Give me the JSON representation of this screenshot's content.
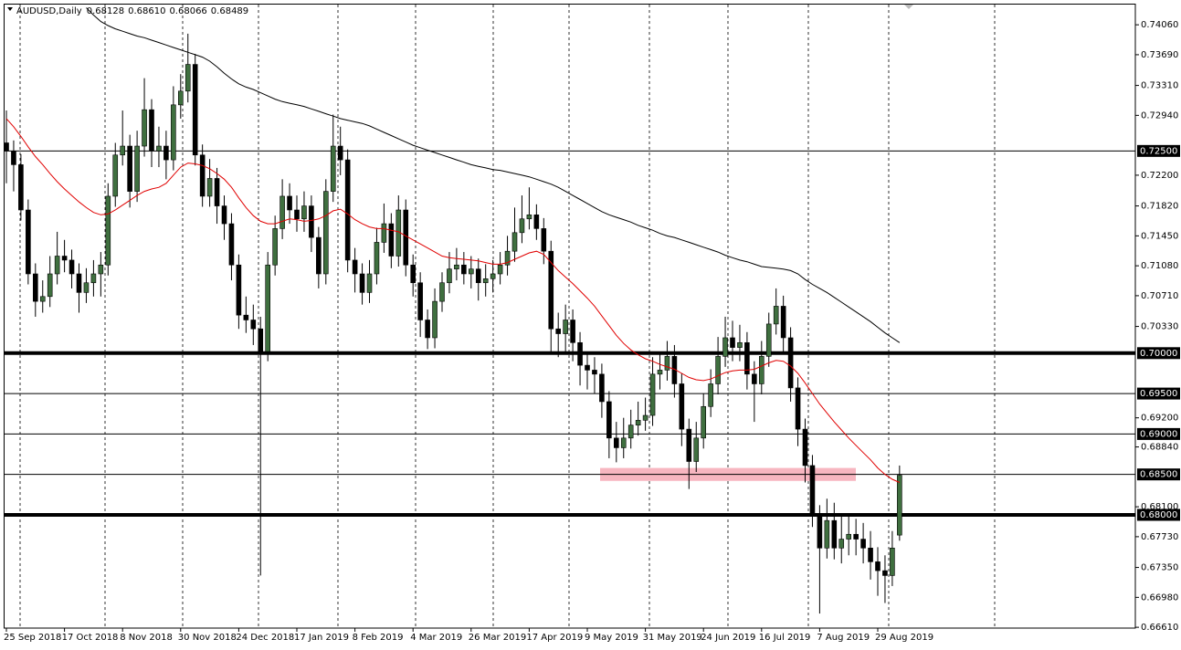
{
  "chart_data": {
    "type": "candlestick",
    "title": "AUDUSD,Daily",
    "header_values": [
      "0.68128",
      "0.68610",
      "0.68066",
      "0.68489"
    ],
    "categories": [
      "25 Sep 2018",
      null,
      null,
      null,
      null,
      null,
      null,
      null,
      "17 Oct 2018",
      null,
      null,
      null,
      null,
      null,
      null,
      null,
      "8 Nov 2018",
      null,
      null,
      null,
      null,
      null,
      null,
      null,
      "30 Nov 2018",
      null,
      null,
      null,
      null,
      null,
      null,
      null,
      "24 Dec 2018",
      null,
      null,
      null,
      null,
      null,
      null,
      null,
      "17 Jan 2019",
      null,
      null,
      null,
      null,
      null,
      null,
      null,
      "8 Feb 2019",
      null,
      null,
      null,
      null,
      null,
      null,
      null,
      "4 Mar 2019",
      null,
      null,
      null,
      null,
      null,
      null,
      null,
      "26 Mar 2019",
      null,
      null,
      null,
      null,
      null,
      null,
      null,
      "17 Apr 2019",
      null,
      null,
      null,
      null,
      null,
      null,
      null,
      "9 May 2019",
      null,
      null,
      null,
      null,
      null,
      null,
      null,
      "31 May 2019",
      null,
      null,
      null,
      null,
      null,
      null,
      null,
      "24 Jun 2019",
      null,
      null,
      null,
      null,
      null,
      null,
      null,
      "16 Jul 2019",
      null,
      null,
      null,
      null,
      null,
      null,
      null,
      "7 Aug 2019",
      null,
      null,
      null,
      null,
      null,
      null,
      null,
      "29 Aug 2019",
      null,
      null,
      null
    ],
    "open": [
      0.726,
      0.725,
      0.7233,
      0.7177,
      0.7098,
      0.7064,
      0.707,
      0.7098,
      0.712,
      0.7115,
      0.7098,
      0.7075,
      0.7087,
      0.7098,
      0.7109,
      0.7194,
      0.7245,
      0.7256,
      0.72,
      0.7256,
      0.7301,
      0.725,
      0.7256,
      0.7239,
      0.7307,
      0.7324,
      0.7357,
      0.7245,
      0.7194,
      0.7216,
      0.7182,
      0.716,
      0.7109,
      0.7047,
      0.7041,
      0.703,
      0.7002,
      0.7109,
      0.7154,
      0.7194,
      0.7177,
      0.7166,
      0.7182,
      0.7143,
      0.7098,
      0.72,
      0.7256,
      0.7239,
      0.7115,
      0.7098,
      0.7075,
      0.7098,
      0.7137,
      0.716,
      0.712,
      0.7177,
      0.7109,
      0.7087,
      0.7041,
      0.7019,
      0.7064,
      0.7087,
      0.7104,
      0.7109,
      0.7098,
      0.7104,
      0.7087,
      0.7092,
      0.7098,
      0.7109,
      0.7126,
      0.7149,
      0.7166,
      0.7171,
      0.7154,
      0.7126,
      0.703,
      0.7024,
      0.7041,
      0.7013,
      0.6985,
      0.6979,
      0.6974,
      0.694,
      0.6895,
      0.6883,
      0.6895,
      0.6911,
      0.6917,
      0.6923,
      0.6974,
      0.6979,
      0.6996,
      0.6962,
      0.6906,
      0.6866,
      0.6895,
      0.6934,
      0.6962,
      0.6996,
      0.7019,
      0.7007,
      0.7013,
      0.6974,
      0.6962,
      0.6996,
      0.7036,
      0.7058,
      0.7019,
      0.6957,
      0.6906,
      0.6861,
      0.6799,
      0.6759,
      0.6793,
      0.6759,
      0.677,
      0.6776,
      0.677,
      0.6759,
      0.6742,
      0.6731,
      0.6725,
      0.6775
    ],
    "high": [
      0.73,
      0.7263,
      0.7246,
      0.719,
      0.7111,
      0.709,
      0.712,
      0.715,
      0.714,
      0.7128,
      0.7111,
      0.7105,
      0.7115,
      0.7125,
      0.721,
      0.726,
      0.73,
      0.727,
      0.7275,
      0.734,
      0.7314,
      0.728,
      0.7275,
      0.733,
      0.7345,
      0.7395,
      0.737,
      0.7258,
      0.724,
      0.7229,
      0.7195,
      0.7173,
      0.7122,
      0.707,
      0.706,
      0.7045,
      0.7125,
      0.717,
      0.7215,
      0.721,
      0.7195,
      0.72,
      0.7195,
      0.7156,
      0.7215,
      0.7295,
      0.728,
      0.7252,
      0.713,
      0.7111,
      0.7115,
      0.7155,
      0.7185,
      0.7173,
      0.7195,
      0.719,
      0.7122,
      0.71,
      0.7054,
      0.708,
      0.71,
      0.7125,
      0.713,
      0.7125,
      0.712,
      0.7117,
      0.711,
      0.7115,
      0.7125,
      0.7145,
      0.718,
      0.7195,
      0.7205,
      0.7184,
      0.7167,
      0.7139,
      0.705,
      0.706,
      0.7054,
      0.7026,
      0.7,
      0.6995,
      0.6987,
      0.6953,
      0.6915,
      0.692,
      0.693,
      0.694,
      0.6945,
      0.6995,
      0.7,
      0.7015,
      0.701,
      0.6975,
      0.6919,
      0.6915,
      0.695,
      0.698,
      0.702,
      0.7045,
      0.704,
      0.7035,
      0.7026,
      0.699,
      0.7015,
      0.705,
      0.708,
      0.7071,
      0.7032,
      0.697,
      0.6919,
      0.6874,
      0.6812,
      0.682,
      0.6815,
      0.68,
      0.68,
      0.6795,
      0.679,
      0.678,
      0.676,
      0.675,
      0.678,
      0.6861
    ],
    "low": [
      0.721,
      0.72,
      0.7164,
      0.7085,
      0.7045,
      0.705,
      0.7057,
      0.7085,
      0.71,
      0.708,
      0.705,
      0.7062,
      0.707,
      0.707,
      0.7096,
      0.7181,
      0.7232,
      0.718,
      0.7187,
      0.7243,
      0.723,
      0.723,
      0.7215,
      0.7226,
      0.729,
      0.731,
      0.7232,
      0.7181,
      0.7181,
      0.716,
      0.714,
      0.709,
      0.703,
      0.7025,
      0.701,
      0.6725,
      0.699,
      0.7096,
      0.7141,
      0.716,
      0.715,
      0.715,
      0.7125,
      0.708,
      0.7085,
      0.7187,
      0.722,
      0.71,
      0.7075,
      0.706,
      0.7062,
      0.7085,
      0.7124,
      0.7105,
      0.7107,
      0.7095,
      0.707,
      0.702,
      0.7005,
      0.7006,
      0.7051,
      0.7074,
      0.709,
      0.7085,
      0.708,
      0.7065,
      0.707,
      0.7075,
      0.7085,
      0.7096,
      0.7113,
      0.7136,
      0.7153,
      0.714,
      0.711,
      0.7,
      0.6995,
      0.7,
      0.699,
      0.696,
      0.6955,
      0.695,
      0.692,
      0.687,
      0.6865,
      0.687,
      0.6882,
      0.6898,
      0.6904,
      0.691,
      0.6955,
      0.6966,
      0.6945,
      0.6885,
      0.6832,
      0.6853,
      0.6882,
      0.6921,
      0.6949,
      0.6983,
      0.699,
      0.699,
      0.6955,
      0.6915,
      0.6949,
      0.6983,
      0.7023,
      0.7,
      0.694,
      0.6885,
      0.684,
      0.6785,
      0.6678,
      0.6746,
      0.6745,
      0.674,
      0.675,
      0.675,
      0.674,
      0.672,
      0.67,
      0.6691,
      0.6712,
      0.6768
    ],
    "close": [
      0.725,
      0.7233,
      0.7177,
      0.7098,
      0.7064,
      0.707,
      0.7098,
      0.712,
      0.7115,
      0.7098,
      0.7075,
      0.7087,
      0.7098,
      0.7109,
      0.7194,
      0.7245,
      0.7256,
      0.72,
      0.7256,
      0.7301,
      0.725,
      0.7256,
      0.7239,
      0.7307,
      0.7324,
      0.7357,
      0.7245,
      0.7194,
      0.7216,
      0.7182,
      0.716,
      0.7109,
      0.7047,
      0.7041,
      0.703,
      0.7002,
      0.7109,
      0.7154,
      0.7194,
      0.7177,
      0.7166,
      0.7182,
      0.7143,
      0.7098,
      0.72,
      0.7256,
      0.7239,
      0.7115,
      0.7098,
      0.7075,
      0.7098,
      0.7137,
      0.716,
      0.712,
      0.7177,
      0.7109,
      0.7087,
      0.7041,
      0.7019,
      0.7064,
      0.7087,
      0.7104,
      0.7109,
      0.7098,
      0.7104,
      0.7087,
      0.7092,
      0.7098,
      0.7109,
      0.7126,
      0.7149,
      0.7166,
      0.7171,
      0.7154,
      0.7126,
      0.703,
      0.7024,
      0.7041,
      0.7013,
      0.6985,
      0.6979,
      0.6974,
      0.694,
      0.6895,
      0.6883,
      0.6895,
      0.6911,
      0.6917,
      0.6923,
      0.6974,
      0.6979,
      0.6996,
      0.6962,
      0.6906,
      0.6866,
      0.6895,
      0.6934,
      0.6962,
      0.6996,
      0.7019,
      0.7007,
      0.7013,
      0.6974,
      0.6962,
      0.6996,
      0.7036,
      0.7058,
      0.7019,
      0.6957,
      0.6906,
      0.6861,
      0.6799,
      0.6759,
      0.6793,
      0.6759,
      0.677,
      0.6776,
      0.677,
      0.6759,
      0.6742,
      0.6731,
      0.6725,
      0.6759,
      0.6849
    ],
    "colors": {
      "up": "#3f6f3f",
      "down": "#000000",
      "outline": "#000000"
    },
    "lines": [
      {
        "color": "#e00000",
        "values": [
          0.729,
          0.728,
          0.7268,
          0.7255,
          0.7243,
          0.7233,
          0.7222,
          0.7212,
          0.7203,
          0.7195,
          0.7187,
          0.718,
          0.7174,
          0.7171,
          0.7172,
          0.7177,
          0.7183,
          0.7189,
          0.7195,
          0.72,
          0.7203,
          0.7205,
          0.721,
          0.722,
          0.723,
          0.7235,
          0.7234,
          0.7232,
          0.7228,
          0.7222,
          0.7215,
          0.7205,
          0.7192,
          0.718,
          0.717,
          0.7163,
          0.716,
          0.716,
          0.7163,
          0.7166,
          0.7165,
          0.7163,
          0.7164,
          0.7166,
          0.717,
          0.7176,
          0.7178,
          0.7172,
          0.7165,
          0.716,
          0.7156,
          0.7154,
          0.7154,
          0.7152,
          0.715,
          0.7145,
          0.714,
          0.7135,
          0.713,
          0.7125,
          0.712,
          0.7118,
          0.7117,
          0.7116,
          0.7115,
          0.7114,
          0.7112,
          0.711,
          0.711,
          0.7112,
          0.7116,
          0.712,
          0.7124,
          0.7126,
          0.7122,
          0.7112,
          0.7102,
          0.7094,
          0.7086,
          0.7077,
          0.7068,
          0.7058,
          0.7046,
          0.7034,
          0.7022,
          0.7012,
          0.7004,
          0.6998,
          0.6993,
          0.699,
          0.6986,
          0.6983,
          0.698,
          0.6975,
          0.697,
          0.6967,
          0.6966,
          0.6968,
          0.6972,
          0.6976,
          0.6978,
          0.6979,
          0.6979,
          0.698,
          0.6984,
          0.6988,
          0.6991,
          0.699,
          0.6984,
          0.6975,
          0.6963,
          0.695,
          0.6937,
          0.6926,
          0.6915,
          0.6905,
          0.6895,
          0.6886,
          0.6877,
          0.6868,
          0.6858,
          0.685,
          0.6844,
          0.684
        ]
      },
      {
        "color": "#000000",
        "values": [
          null,
          null,
          null,
          null,
          null,
          null,
          null,
          null,
          null,
          null,
          null,
          0.7427,
          0.7418,
          0.741,
          0.7405,
          0.7401,
          0.7398,
          0.7395,
          0.7392,
          0.739,
          0.7387,
          0.7384,
          0.7381,
          0.7378,
          0.7375,
          0.7372,
          0.7369,
          0.7366,
          0.7361,
          0.7354,
          0.7346,
          0.7339,
          0.7333,
          0.7329,
          0.7326,
          0.7322,
          0.7318,
          0.7314,
          0.7311,
          0.7309,
          0.7307,
          0.7305,
          0.7302,
          0.7299,
          0.7296,
          0.7293,
          0.729,
          0.7288,
          0.7286,
          0.7284,
          0.7281,
          0.7277,
          0.7273,
          0.7269,
          0.7265,
          0.7261,
          0.7257,
          0.7254,
          0.7251,
          0.7248,
          0.7245,
          0.7242,
          0.7239,
          0.7236,
          0.7233,
          0.7231,
          0.7229,
          0.7227,
          0.7226,
          0.7224,
          0.7222,
          0.722,
          0.7218,
          0.7215,
          0.7212,
          0.7209,
          0.7205,
          0.72,
          0.7195,
          0.719,
          0.7185,
          0.718,
          0.7175,
          0.7171,
          0.7168,
          0.7165,
          0.7162,
          0.7158,
          0.7155,
          0.7152,
          0.7148,
          0.7145,
          0.7143,
          0.714,
          0.7137,
          0.7134,
          0.7131,
          0.7128,
          0.7125,
          0.7121,
          0.7118,
          0.7115,
          0.7113,
          0.711,
          0.7107,
          0.7106,
          0.7105,
          0.7104,
          0.7102,
          0.7098,
          0.7091,
          0.7085,
          0.708,
          0.7075,
          0.7069,
          0.7063,
          0.7057,
          0.7051,
          0.7045,
          0.7039,
          0.7032,
          0.7025,
          0.7019,
          0.7013
        ]
      }
    ],
    "levels": [
      {
        "value": 0.725,
        "label": "0.72500",
        "thick": false
      },
      {
        "value": 0.7,
        "label": "0.70000",
        "thick": true
      },
      {
        "value": 0.695,
        "label": "0.69500",
        "thick": false
      },
      {
        "value": 0.69,
        "label": "0.69000",
        "thick": false
      },
      {
        "value": 0.685,
        "label": "0.68500",
        "thick": false
      },
      {
        "value": 0.68,
        "label": "0.68000",
        "thick": true
      }
    ],
    "zone": {
      "low": 0.6842,
      "high": 0.6858,
      "color": "#f7b6c0"
    },
    "ylim": [
      0.666,
      0.7431
    ],
    "yticks": [
      {
        "value": 0.7406,
        "label": "0.74060"
      },
      {
        "value": 0.7369,
        "label": "0.73690"
      },
      {
        "value": 0.7331,
        "label": "0.73310"
      },
      {
        "value": 0.7294,
        "label": "0.72940"
      },
      {
        "value": 0.722,
        "label": "0.72200"
      },
      {
        "value": 0.7182,
        "label": "0.71820"
      },
      {
        "value": 0.7145,
        "label": "0.71450"
      },
      {
        "value": 0.7108,
        "label": "0.71080"
      },
      {
        "value": 0.7071,
        "label": "0.70710"
      },
      {
        "value": 0.7033,
        "label": "0.70330"
      },
      {
        "value": 0.692,
        "label": "0.69200"
      },
      {
        "value": 0.6884,
        "label": "0.68840"
      },
      {
        "value": 0.681,
        "label": "0.68100"
      },
      {
        "value": 0.6773,
        "label": "0.67730"
      },
      {
        "value": 0.6735,
        "label": "0.67350"
      },
      {
        "value": 0.6698,
        "label": "0.66980"
      },
      {
        "value": 0.6661,
        "label": "0.66610"
      }
    ],
    "grid": true
  }
}
